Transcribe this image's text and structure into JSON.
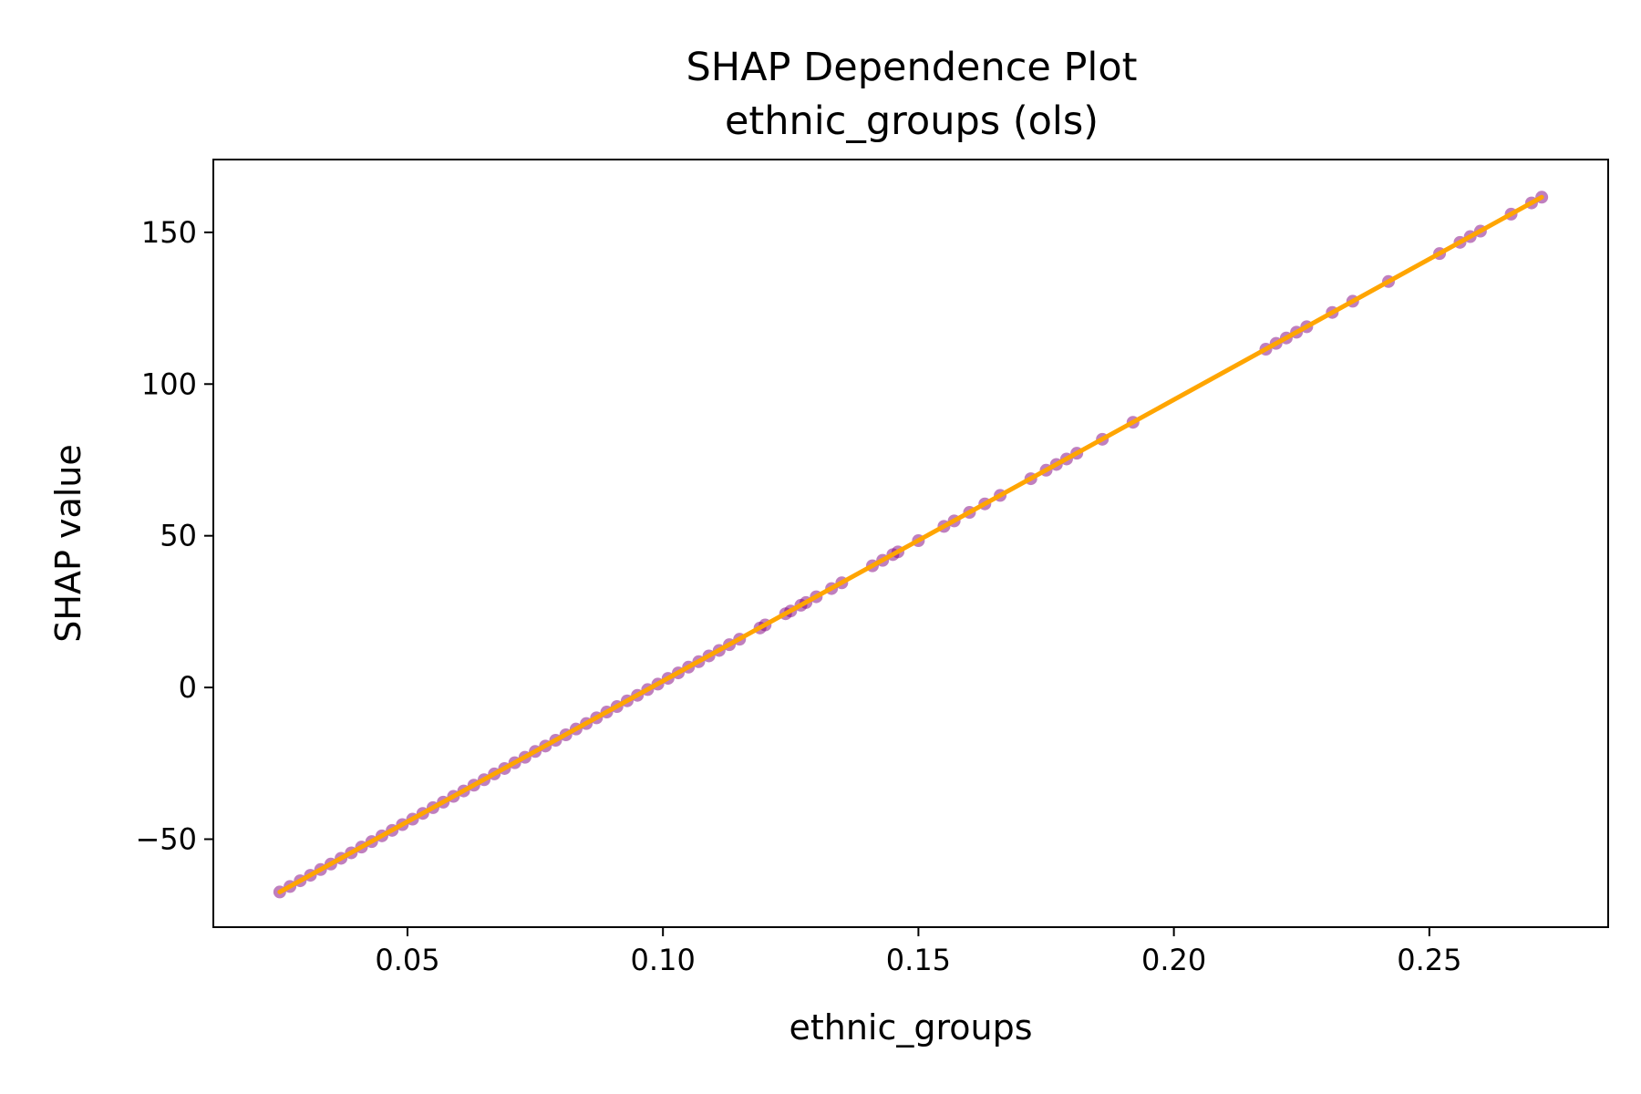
{
  "chart_data": {
    "type": "scatter",
    "title": "SHAP Dependence Plot",
    "subtitle": "ethnic_groups (ols)",
    "xlabel": "ethnic_groups",
    "ylabel": "SHAP value",
    "xlim": [
      0.012,
      0.285
    ],
    "ylim": [
      -79,
      174
    ],
    "xticks": [
      0.05,
      0.1,
      0.15,
      0.2,
      0.25
    ],
    "xtick_labels": [
      "0.05",
      "0.10",
      "0.15",
      "0.20",
      "0.25"
    ],
    "yticks": [
      -50,
      0,
      50,
      100,
      150
    ],
    "ytick_labels": [
      "−50",
      "0",
      "50",
      "100",
      "150"
    ],
    "grid": false,
    "legend": "none",
    "colors": {
      "points": "#800080",
      "line": "#FFA500"
    },
    "series": [
      {
        "kind": "points",
        "x": [
          0.025,
          0.027,
          0.029,
          0.031,
          0.033,
          0.035,
          0.037,
          0.039,
          0.041,
          0.043,
          0.045,
          0.047,
          0.049,
          0.051,
          0.053,
          0.055,
          0.057,
          0.059,
          0.061,
          0.063,
          0.065,
          0.067,
          0.069,
          0.071,
          0.073,
          0.075,
          0.077,
          0.079,
          0.081,
          0.083,
          0.085,
          0.087,
          0.089,
          0.091,
          0.093,
          0.095,
          0.097,
          0.099,
          0.101,
          0.103,
          0.105,
          0.107,
          0.109,
          0.111,
          0.113,
          0.115,
          0.119,
          0.12,
          0.124,
          0.125,
          0.127,
          0.128,
          0.13,
          0.133,
          0.135,
          0.141,
          0.143,
          0.145,
          0.146,
          0.15,
          0.155,
          0.157,
          0.16,
          0.163,
          0.166,
          0.172,
          0.175,
          0.177,
          0.179,
          0.181,
          0.186,
          0.192,
          0.218,
          0.22,
          0.222,
          0.224,
          0.226,
          0.231,
          0.235,
          0.242,
          0.252,
          0.256,
          0.258,
          0.26,
          0.266,
          0.27,
          0.272
        ],
        "y": [
          -67.4,
          -65.6,
          -63.7,
          -61.9,
          -60.0,
          -58.2,
          -56.3,
          -54.5,
          -52.6,
          -50.8,
          -48.9,
          -47.1,
          -45.2,
          -43.4,
          -41.5,
          -39.6,
          -37.8,
          -35.9,
          -34.1,
          -32.2,
          -30.4,
          -28.5,
          -26.7,
          -24.8,
          -23.0,
          -21.1,
          -19.3,
          -17.4,
          -15.6,
          -13.7,
          -11.9,
          -10.0,
          -8.1,
          -6.3,
          -4.4,
          -2.6,
          -0.7,
          1.1,
          3.0,
          4.8,
          6.7,
          8.5,
          10.4,
          12.2,
          14.1,
          15.9,
          19.6,
          20.6,
          24.3,
          25.2,
          27.1,
          28.0,
          29.9,
          32.6,
          34.5,
          40.1,
          41.9,
          43.8,
          44.7,
          48.4,
          53.1,
          54.9,
          57.7,
          60.5,
          63.3,
          68.8,
          71.6,
          73.5,
          75.3,
          77.2,
          81.8,
          87.4,
          111.5,
          113.4,
          115.2,
          117.1,
          118.9,
          123.6,
          127.3,
          133.8,
          143.0,
          146.7,
          148.6,
          150.4,
          156.0,
          159.7,
          161.6
        ]
      },
      {
        "kind": "trend-line",
        "x": [
          0.025,
          0.272
        ],
        "y": [
          -67.4,
          161.6
        ]
      }
    ]
  }
}
